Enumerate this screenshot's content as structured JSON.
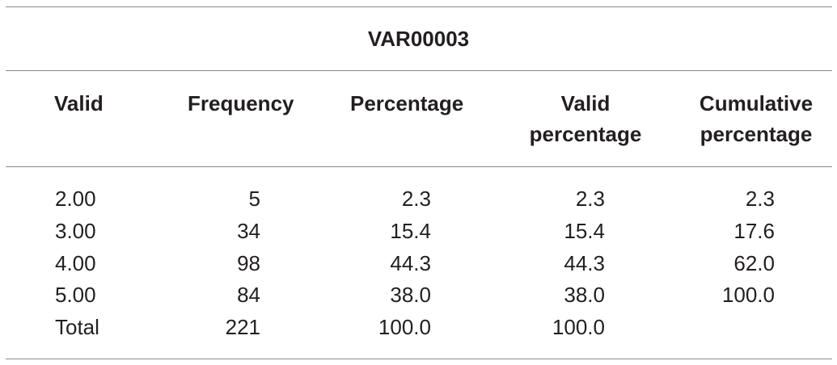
{
  "header": {
    "title": "VAR00003"
  },
  "table": {
    "columns": [
      "Valid",
      "Frequency",
      "Percentage",
      "Valid percentage",
      "Cumulative percentage"
    ],
    "rows": [
      [
        "2.00",
        "5",
        "2.3",
        "2.3",
        "2.3"
      ],
      [
        "3.00",
        "34",
        "15.4",
        "15.4",
        "17.6"
      ],
      [
        "4.00",
        "98",
        "44.3",
        "44.3",
        "62.0"
      ],
      [
        "5.00",
        "84",
        "38.0",
        "38.0",
        "100.0"
      ],
      [
        "Total",
        "221",
        "100.0",
        "100.0"
      ]
    ]
  }
}
